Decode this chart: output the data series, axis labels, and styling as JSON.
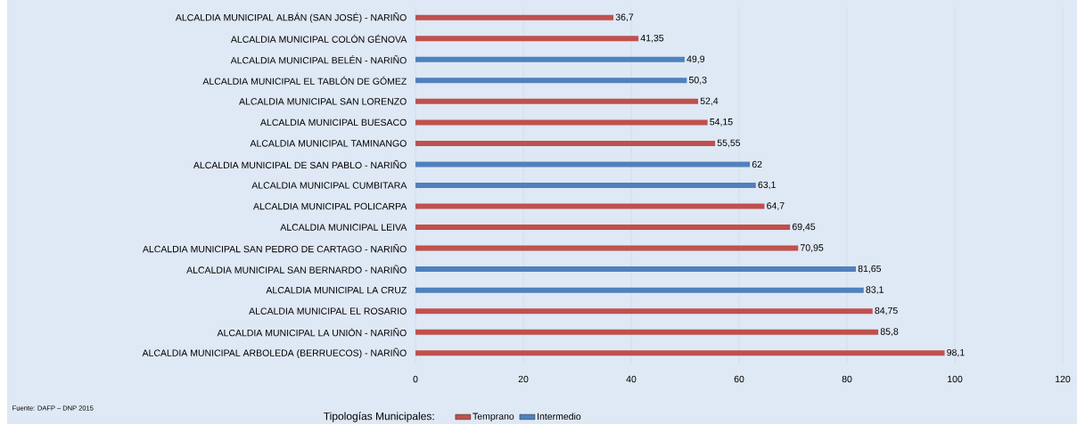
{
  "chart_data": {
    "type": "bar",
    "orientation": "horizontal",
    "categories": [
      "ALCALDIA MUNICIPAL ALBÁN (SAN JOSÉ) - NARIÑO",
      "ALCALDIA MUNICIPAL COLÓN GÉNOVA",
      "ALCALDIA MUNICIPAL BELÉN - NARIÑO",
      "ALCALDIA MUNICIPAL EL TABLÓN DE GÓMEZ",
      "ALCALDIA MUNICIPAL SAN LORENZO",
      "ALCALDIA MUNICIPAL BUESACO",
      "ALCALDIA MUNICIPAL TAMINANGO",
      "ALCALDIA MUNICIPAL DE SAN PABLO - NARIÑO",
      "ALCALDIA MUNICIPAL CUMBITARA",
      "ALCALDIA MUNICIPAL POLICARPA",
      "ALCALDIA MUNICIPAL LEIVA",
      "ALCALDIA MUNICIPAL SAN PEDRO DE CARTAGO - NARIÑO",
      "ALCALDIA MUNICIPAL SAN BERNARDO - NARIÑO",
      "ALCALDIA MUNICIPAL LA CRUZ",
      "ALCALDIA MUNICIPAL EL ROSARIO",
      "ALCALDIA MUNICIPAL LA UNIÓN - NARIÑO",
      "ALCALDIA MUNICIPAL ARBOLEDA (BERRUECOS) - NARIÑO"
    ],
    "series": [
      {
        "name": "Temprano",
        "color": "#c0504d",
        "values": [
          36.7,
          41.35,
          null,
          null,
          52.4,
          54.15,
          55.55,
          null,
          null,
          64.7,
          69.45,
          70.95,
          null,
          null,
          84.75,
          85.8,
          98.1
        ],
        "value_labels": [
          "36,7",
          "41,35",
          null,
          null,
          "52,4",
          "54,15",
          "55,55",
          null,
          null,
          "64,7",
          "69,45",
          "70,95",
          null,
          null,
          "84,75",
          "85,8",
          "98,1"
        ]
      },
      {
        "name": "Intermedio",
        "color": "#4f81bd",
        "values": [
          null,
          null,
          49.9,
          50.3,
          null,
          null,
          null,
          62,
          63.1,
          null,
          null,
          null,
          81.65,
          83.1,
          null,
          null,
          null
        ],
        "value_labels": [
          null,
          null,
          "49,9",
          "50,3",
          null,
          null,
          null,
          "62",
          "63,1",
          null,
          null,
          null,
          "81,65",
          "83,1",
          null,
          null,
          null
        ]
      }
    ],
    "xlim": [
      0,
      120
    ],
    "xticks": [
      0,
      20,
      40,
      60,
      80,
      100,
      120
    ],
    "grid": "x",
    "legend": "bottom",
    "legend_title": "Tipologías Municipales:",
    "annotations": [
      "Fuente: DAFP – DNP 2015"
    ]
  }
}
